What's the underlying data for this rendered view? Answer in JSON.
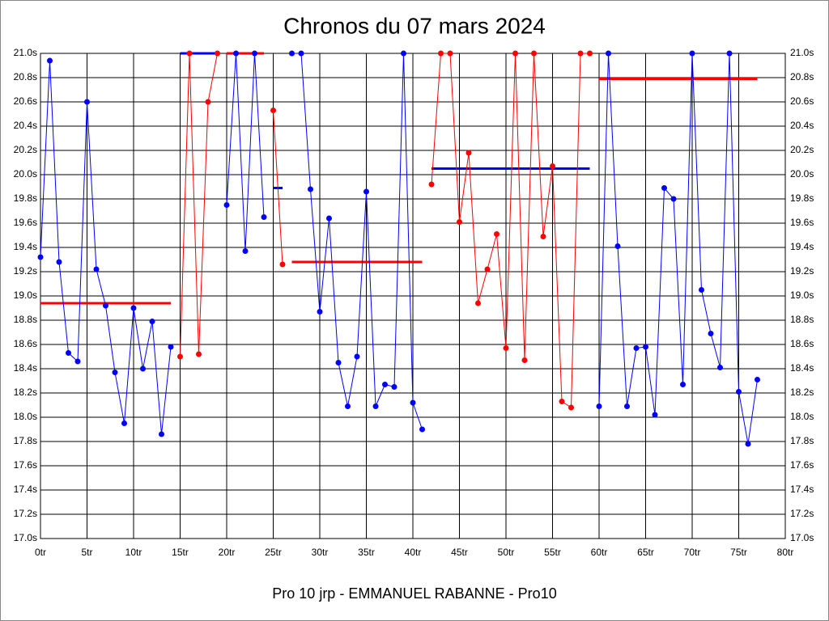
{
  "chart_data": {
    "type": "line",
    "title": "Chronos du 07 mars 2024",
    "x_label": "Pro 10 jrp - EMMANUEL RABANNE - Pro10",
    "xlim": [
      0,
      80
    ],
    "xticks": [
      {
        "value": 0,
        "label": "0tr"
      },
      {
        "value": 5,
        "label": "5tr"
      },
      {
        "value": 10,
        "label": "10tr"
      },
      {
        "value": 15,
        "label": "15tr"
      },
      {
        "value": 20,
        "label": "20tr"
      },
      {
        "value": 25,
        "label": "25tr"
      },
      {
        "value": 30,
        "label": "30tr"
      },
      {
        "value": 35,
        "label": "35tr"
      },
      {
        "value": 40,
        "label": "40tr"
      },
      {
        "value": 45,
        "label": "45tr"
      },
      {
        "value": 50,
        "label": "50tr"
      },
      {
        "value": 55,
        "label": "55tr"
      },
      {
        "value": 60,
        "label": "60tr"
      },
      {
        "value": 65,
        "label": "65tr"
      },
      {
        "value": 70,
        "label": "70tr"
      },
      {
        "value": 75,
        "label": "75tr"
      },
      {
        "value": 80,
        "label": "80tr"
      }
    ],
    "ylim": [
      17.0,
      21.0
    ],
    "yticks": [
      {
        "value": 17.0,
        "label": "17.0s"
      },
      {
        "value": 17.2,
        "label": "17.2s"
      },
      {
        "value": 17.4,
        "label": "17.4s"
      },
      {
        "value": 17.6,
        "label": "17.6s"
      },
      {
        "value": 17.8,
        "label": "17.8s"
      },
      {
        "value": 18.0,
        "label": "18.0s"
      },
      {
        "value": 18.2,
        "label": "18.2s"
      },
      {
        "value": 18.4,
        "label": "18.4s"
      },
      {
        "value": 18.6,
        "label": "18.6s"
      },
      {
        "value": 18.8,
        "label": "18.8s"
      },
      {
        "value": 19.0,
        "label": "19.0s"
      },
      {
        "value": 19.2,
        "label": "19.2s"
      },
      {
        "value": 19.4,
        "label": "19.4s"
      },
      {
        "value": 19.6,
        "label": "19.6s"
      },
      {
        "value": 19.8,
        "label": "19.8s"
      },
      {
        "value": 20.0,
        "label": "20.0s"
      },
      {
        "value": 20.2,
        "label": "20.2s"
      },
      {
        "value": 20.4,
        "label": "20.4s"
      },
      {
        "value": 20.6,
        "label": "20.6s"
      },
      {
        "value": 20.8,
        "label": "20.8s"
      },
      {
        "value": 21.0,
        "label": "21.0s"
      }
    ],
    "grid": true,
    "series": [
      {
        "color": "#0000ff",
        "x": [
          0,
          1,
          2,
          3,
          4,
          5,
          6,
          7,
          8,
          9,
          10,
          11,
          12,
          13,
          14
        ],
        "values": [
          19.32,
          20.94,
          19.28,
          18.53,
          18.46,
          20.6,
          19.22,
          18.92,
          18.37,
          17.95,
          18.9,
          18.4,
          18.79,
          17.86,
          18.58
        ]
      },
      {
        "color": "#ff0000",
        "x": [
          15,
          16,
          17,
          18,
          19
        ],
        "values": [
          18.5,
          21.0,
          18.52,
          20.6,
          21.0
        ]
      },
      {
        "color": "#0000ff",
        "x": [
          20,
          21,
          22,
          23,
          24
        ],
        "values": [
          19.75,
          21.0,
          19.37,
          21.0,
          19.65
        ]
      },
      {
        "color": "#ff0000",
        "x": [
          25,
          26
        ],
        "values": [
          20.53,
          19.26
        ]
      },
      {
        "color": "#0000ff",
        "x": [
          27,
          28,
          29,
          30,
          31,
          32,
          33,
          34,
          35,
          36,
          37,
          38,
          39,
          40,
          41
        ],
        "values": [
          21.0,
          21.0,
          19.88,
          18.87,
          19.64,
          18.45,
          18.09,
          18.5,
          19.86,
          18.09,
          18.27,
          18.25,
          21.0,
          18.12,
          17.9
        ]
      },
      {
        "color": "#ff0000",
        "x": [
          42,
          43,
          44,
          45,
          46,
          47,
          48,
          49,
          50,
          51,
          52,
          53,
          54,
          55,
          56,
          57,
          58,
          59
        ],
        "values": [
          19.92,
          21.0,
          21.0,
          19.61,
          20.18,
          18.94,
          19.22,
          19.51,
          18.57,
          21.0,
          18.47,
          21.0,
          19.49,
          20.07,
          18.13,
          18.08,
          21.0,
          21.0
        ]
      },
      {
        "color": "#0000ff",
        "x": [
          60,
          61,
          62,
          63,
          64,
          65,
          66,
          67,
          68,
          69,
          70,
          71,
          72,
          73,
          74,
          75,
          76,
          77
        ],
        "values": [
          18.09,
          21.0,
          19.41,
          18.09,
          18.57,
          18.58,
          18.02,
          19.89,
          19.8,
          18.27,
          21.0,
          19.05,
          18.69,
          18.41,
          21.0,
          18.21,
          17.78,
          18.31
        ]
      }
    ],
    "averages": [
      {
        "color": "#ff0000",
        "x": [
          0,
          14
        ],
        "value": 18.94
      },
      {
        "color": "#0000ff",
        "x": [
          15,
          19
        ],
        "value": 21.0
      },
      {
        "color": "#ff0000",
        "x": [
          20,
          24
        ],
        "value": 21.0
      },
      {
        "color": "#0000ff",
        "x": [
          25,
          26
        ],
        "value": 19.89
      },
      {
        "color": "#ff0000",
        "x": [
          27,
          41
        ],
        "value": 19.28
      },
      {
        "color": "#0000ff",
        "x": [
          42,
          59
        ],
        "value": 20.05
      },
      {
        "color": "#ff0000",
        "x": [
          60,
          77
        ],
        "value": 20.79
      }
    ]
  }
}
